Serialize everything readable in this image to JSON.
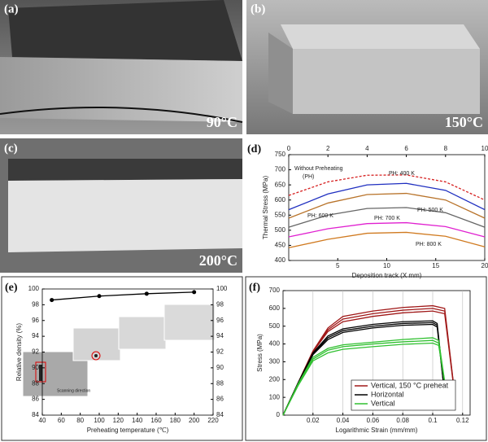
{
  "photos": [
    {
      "label": "(a)",
      "temperature": "90°C"
    },
    {
      "label": "(b)",
      "temperature": "150°C"
    },
    {
      "label": "(c)",
      "temperature": "200°C"
    }
  ],
  "chart_data": [
    {
      "type": "line",
      "panel_label": "(d)",
      "xlabel": "Deposition track (X mm)",
      "ylabel": "Thermal Stress (MPa)",
      "xlim": [
        0,
        20
      ],
      "xticks": [
        5,
        10,
        15,
        20
      ],
      "x2lim": [
        0,
        10
      ],
      "x2ticks": [
        0,
        2,
        4,
        6,
        8,
        10
      ],
      "ylim": [
        400,
        750
      ],
      "yticks": [
        400,
        450,
        500,
        550,
        600,
        650,
        700,
        750
      ],
      "x": [
        0,
        4,
        8,
        12,
        16,
        20
      ],
      "annotations": [
        "Without Preheating",
        "(PH)",
        "PH: 400 K",
        "PH: 500 K",
        "PH: 600 K",
        "PH: 700 K",
        "PH: 800 K"
      ],
      "series": [
        {
          "color": "#d62020",
          "dash": true,
          "values": [
            615,
            660,
            682,
            683,
            660,
            600
          ]
        },
        {
          "color": "#1f2fc0",
          "values": [
            568,
            620,
            650,
            655,
            632,
            568
          ]
        },
        {
          "color": "#b8732a",
          "values": [
            540,
            590,
            618,
            622,
            600,
            540
          ]
        },
        {
          "color": "#666666",
          "values": [
            510,
            550,
            572,
            575,
            558,
            510
          ]
        },
        {
          "color": "#e020d0",
          "values": [
            478,
            505,
            522,
            525,
            512,
            478
          ]
        },
        {
          "color": "#d07a20",
          "values": [
            442,
            470,
            490,
            493,
            480,
            445
          ]
        }
      ]
    },
    {
      "type": "line",
      "panel_label": "(e)",
      "xlabel": "Preheating temperature (℃)",
      "ylabel": "Relative density (%)",
      "inset_text": "Scanning direction",
      "xlim": [
        40,
        220
      ],
      "xticks": [
        40,
        60,
        80,
        100,
        120,
        140,
        160,
        180,
        200,
        220
      ],
      "ylim": [
        84,
        100
      ],
      "yticks": [
        84,
        86,
        88,
        90,
        92,
        94,
        96,
        98,
        100
      ],
      "y2lim": [
        84,
        100
      ],
      "y2ticks": [
        84,
        86,
        88,
        90,
        92,
        94,
        96,
        98,
        100
      ],
      "markers": true,
      "x": [
        50,
        100,
        150,
        200
      ],
      "series": [
        {
          "color": "#000000",
          "values": [
            98.6,
            99.1,
            99.4,
            99.6
          ]
        }
      ]
    },
    {
      "type": "line",
      "panel_label": "(f)",
      "xlabel": "Logarithmic Strain (mm/mm)",
      "ylabel": "Stress (MPa)",
      "xlim": [
        0,
        0.125
      ],
      "xticks": [
        0.02,
        0.04,
        0.06,
        0.08,
        0.1,
        0.12
      ],
      "ylim": [
        0,
        700
      ],
      "yticks": [
        0,
        100,
        200,
        300,
        400,
        500,
        600,
        700
      ],
      "grid": true,
      "legend": "lower right",
      "series": [
        {
          "name": "Vertical, 150 °C preheat",
          "color": "#a01818",
          "x": [
            0,
            0.01,
            0.02,
            0.03,
            0.04,
            0.06,
            0.08,
            0.1,
            0.108,
            0.114
          ],
          "curves": [
            [
              0,
              180,
              360,
              490,
              555,
              585,
              605,
              615,
              600,
              170
            ],
            [
              0,
              180,
              360,
              480,
              540,
              570,
              590,
              600,
              585,
              165
            ],
            [
              0,
              175,
              355,
              470,
              525,
              555,
              575,
              585,
              570,
              160
            ]
          ]
        },
        {
          "name": "Horizontal",
          "color": "#000000",
          "x": [
            0,
            0.01,
            0.02,
            0.03,
            0.04,
            0.06,
            0.08,
            0.1,
            0.103,
            0.107
          ],
          "curves": [
            [
              0,
              180,
              350,
              445,
              485,
              510,
              525,
              530,
              515,
              200
            ],
            [
              0,
              180,
              345,
              435,
              475,
              500,
              515,
              520,
              505,
              195
            ],
            [
              0,
              175,
              340,
              425,
              465,
              490,
              505,
              510,
              495,
              190
            ]
          ]
        },
        {
          "name": "Vertical",
          "color": "#30c030",
          "x": [
            0,
            0.01,
            0.02,
            0.03,
            0.04,
            0.06,
            0.08,
            0.1,
            0.104,
            0.108
          ],
          "curves": [
            [
              0,
              175,
              325,
              375,
              395,
              410,
              425,
              435,
              420,
              190
            ],
            [
              0,
              170,
              315,
              365,
              385,
              400,
              412,
              420,
              405,
              185
            ],
            [
              0,
              165,
              305,
              350,
              370,
              385,
              398,
              405,
              392,
              180
            ]
          ]
        }
      ]
    }
  ]
}
